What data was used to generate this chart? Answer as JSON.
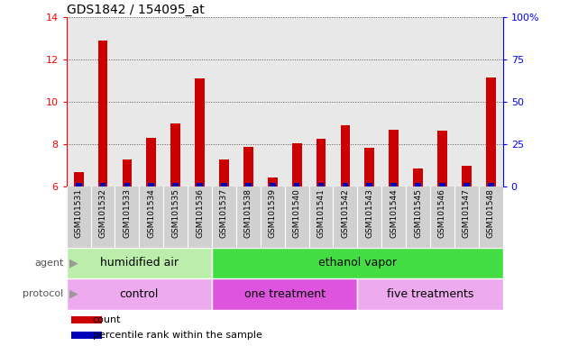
{
  "title": "GDS1842 / 154095_at",
  "samples": [
    "GSM101531",
    "GSM101532",
    "GSM101533",
    "GSM101534",
    "GSM101535",
    "GSM101536",
    "GSM101537",
    "GSM101538",
    "GSM101539",
    "GSM101540",
    "GSM101541",
    "GSM101542",
    "GSM101543",
    "GSM101544",
    "GSM101545",
    "GSM101546",
    "GSM101547",
    "GSM101548"
  ],
  "count_values": [
    6.7,
    12.9,
    7.3,
    8.3,
    9.0,
    11.1,
    7.3,
    7.9,
    6.45,
    8.05,
    8.25,
    8.9,
    7.85,
    8.7,
    6.85,
    8.65,
    7.0,
    11.15
  ],
  "percentile_values": [
    1,
    1,
    1,
    1,
    1,
    1,
    1,
    1,
    1,
    1,
    1,
    1,
    1,
    1,
    1,
    1,
    1,
    1
  ],
  "ylim_left": [
    6,
    14
  ],
  "ylim_right": [
    0,
    100
  ],
  "yticks_left": [
    6,
    8,
    10,
    12,
    14
  ],
  "yticks_right": [
    0,
    25,
    50,
    75,
    100
  ],
  "ytick_labels_right": [
    "0",
    "25",
    "50",
    "75",
    "100%"
  ],
  "bar_color_red": "#cc0000",
  "bar_color_blue": "#0000bb",
  "grid_color": "#555555",
  "agent_groups": [
    {
      "label": "humidified air",
      "start": 0,
      "end": 6,
      "color": "#bbeeaa"
    },
    {
      "label": "ethanol vapor",
      "start": 6,
      "end": 18,
      "color": "#44dd44"
    }
  ],
  "protocol_groups": [
    {
      "label": "control",
      "start": 0,
      "end": 6,
      "color": "#eeaaee"
    },
    {
      "label": "one treatment",
      "start": 6,
      "end": 12,
      "color": "#dd55dd"
    },
    {
      "label": "five treatments",
      "start": 12,
      "end": 18,
      "color": "#eeaaee"
    }
  ],
  "background_color": "#ffffff",
  "plot_bg_color": "#e8e8e8",
  "xtick_bg_color": "#d0d0d0",
  "legend_count_label": "count",
  "legend_pct_label": "percentile rank within the sample",
  "title_fontsize": 10,
  "tick_fontsize": 8,
  "xtick_fontsize": 6.5,
  "annotation_fontsize": 9,
  "label_fontsize": 8
}
